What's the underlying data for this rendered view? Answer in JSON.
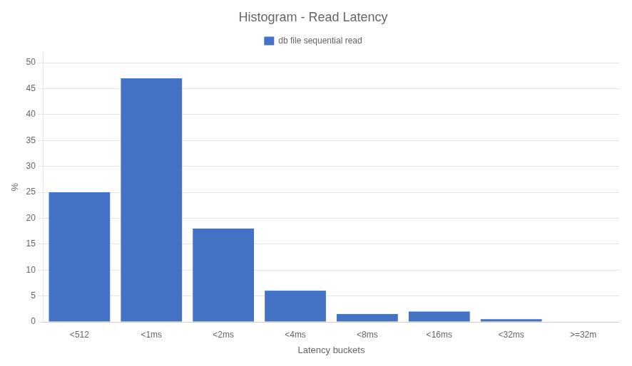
{
  "chart_data": {
    "type": "bar",
    "title": "Histogram - Read Latency",
    "xlabel": "Latency buckets",
    "ylabel": "%",
    "categories": [
      "<512",
      "<1ms",
      "<2ms",
      "<4ms",
      "<8ms",
      "<16ms",
      "<32ms",
      ">=32m"
    ],
    "series": [
      {
        "name": "db file sequential read",
        "color": "#4472C4",
        "values": [
          25,
          47,
          18,
          6,
          1.5,
          2,
          0.5,
          0
        ]
      }
    ],
    "ylim": [
      0,
      52
    ],
    "yticks": [
      0,
      5,
      10,
      15,
      20,
      25,
      30,
      35,
      40,
      45,
      50
    ],
    "grid": "y",
    "legend": "top"
  }
}
